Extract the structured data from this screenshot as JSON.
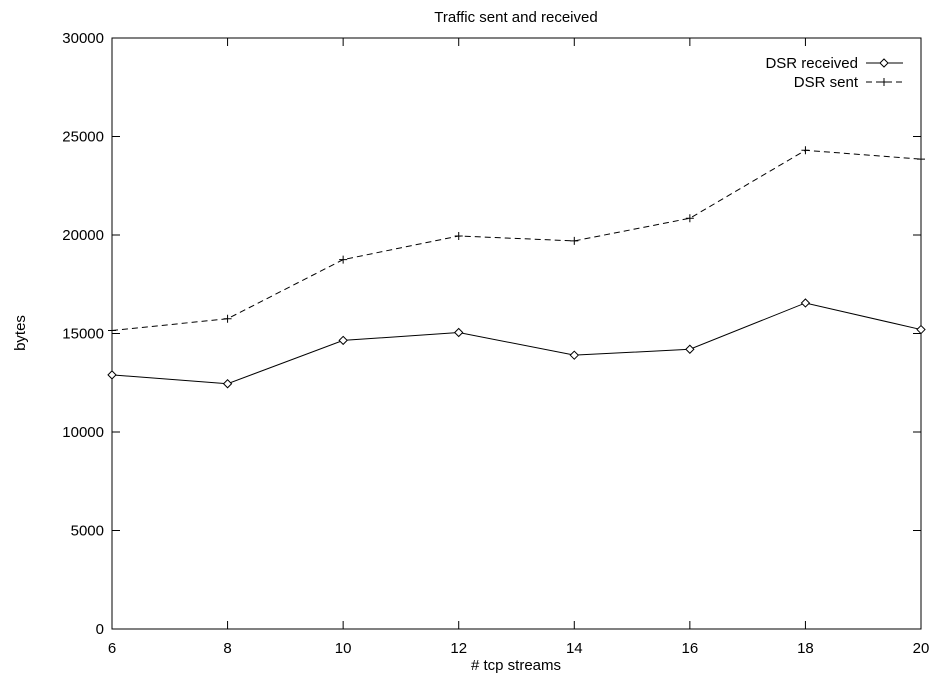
{
  "chart_data": {
    "type": "line",
    "title": "Traffic sent and received",
    "xlabel": "# tcp streams",
    "ylabel": "bytes",
    "xlim": [
      6,
      20
    ],
    "ylim": [
      0,
      30000
    ],
    "x_ticks": [
      6,
      8,
      10,
      12,
      14,
      16,
      18,
      20
    ],
    "y_ticks": [
      0,
      5000,
      10000,
      15000,
      20000,
      25000,
      30000
    ],
    "grid": false,
    "legend_position": "top-right",
    "x": [
      6,
      8,
      10,
      12,
      14,
      16,
      18,
      20
    ],
    "series": [
      {
        "name": "DSR received",
        "marker": "diamond",
        "line_style": "solid",
        "color": "#000000",
        "values": [
          12900,
          12450,
          14650,
          15050,
          13900,
          14200,
          16550,
          15200
        ]
      },
      {
        "name": "DSR sent",
        "marker": "plus",
        "line_style": "dashed",
        "color": "#000000",
        "values": [
          15150,
          15750,
          18750,
          19950,
          19700,
          20850,
          24300,
          23850
        ]
      }
    ]
  }
}
